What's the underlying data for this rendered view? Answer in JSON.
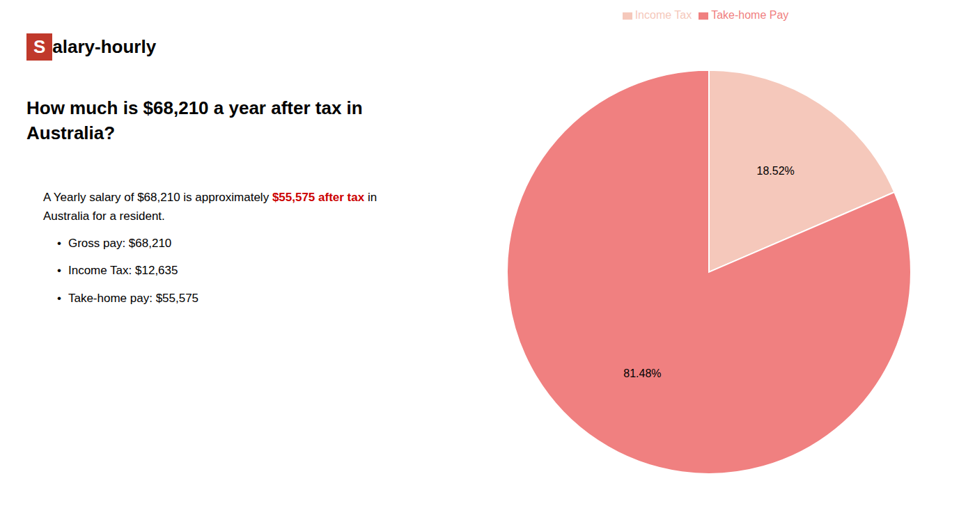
{
  "chart_data": {
    "type": "pie",
    "title": "How much is $68,210 a year after tax in Australia?",
    "annotations": [
      [
        {
          "text": "S",
          "color": "#c0392b"
        },
        {
          "text": "alary-hourly"
        }
      ],
      [
        {
          "text": "A Yearly salary of $68,210 is approximately "
        },
        {
          "text": "$55,575 after tax",
          "color": "#cc0000"
        },
        {
          "text": " in"
        }
      ],
      [
        {
          "text": "Australia for a resident."
        }
      ],
      [
        {
          "text": "•"
        },
        {
          "text": "Gross pay: $68,210"
        }
      ],
      [
        {
          "text": "•"
        },
        {
          "text": "Income Tax: $12,635"
        }
      ],
      [
        {
          "text": "•"
        },
        {
          "text": "Take-home pay: $55,575"
        }
      ]
    ],
    "categories": [
      "Income Tax",
      "Take-home Pay"
    ],
    "values": [
      18.52,
      81.48
    ],
    "value_labels": [
      "18.52%",
      "81.48%"
    ],
    "colors": [
      "#f5c8bb",
      "#f08080"
    ],
    "data_labels": true,
    "legend": "top"
  }
}
